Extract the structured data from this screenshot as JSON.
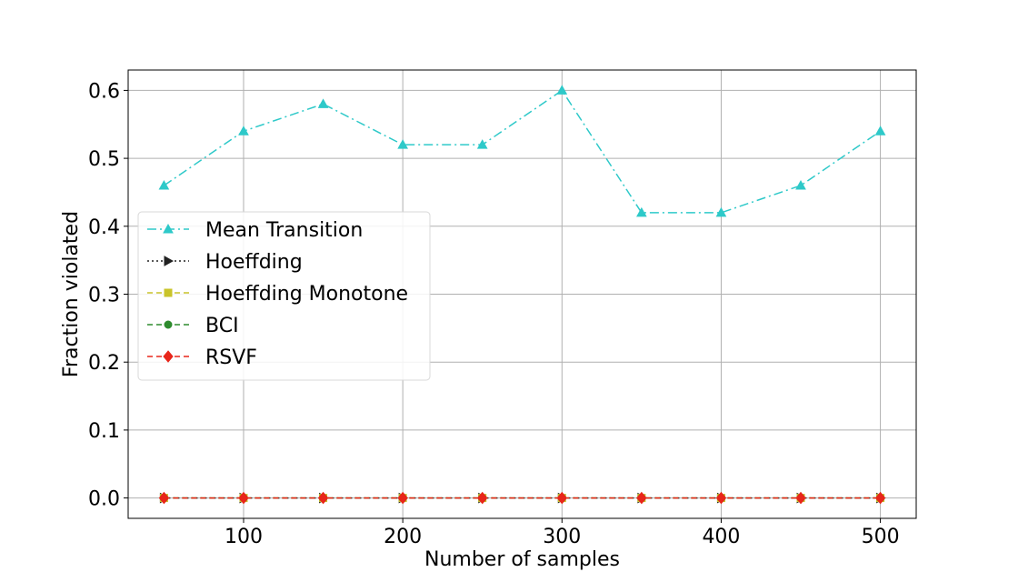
{
  "chart_data": {
    "type": "line",
    "title": "",
    "xlabel": "Number of samples",
    "ylabel": "Fraction violated",
    "x": [
      50,
      100,
      150,
      200,
      250,
      300,
      350,
      400,
      450,
      500
    ],
    "xlim": [
      27.5,
      522.5
    ],
    "ylim": [
      -0.03,
      0.63
    ],
    "xticks": [
      100,
      200,
      300,
      400,
      500
    ],
    "yticks": [
      0.0,
      0.1,
      0.2,
      0.3,
      0.4,
      0.5,
      0.6
    ],
    "xtick_labels": [
      "100",
      "200",
      "300",
      "400",
      "500"
    ],
    "ytick_labels": [
      "0.0",
      "0.1",
      "0.2",
      "0.3",
      "0.4",
      "0.5",
      "0.6"
    ],
    "grid": true,
    "legend_position": "center-left",
    "series": [
      {
        "name": "Mean Transition",
        "values": [
          0.46,
          0.54,
          0.58,
          0.52,
          0.52,
          0.6,
          0.42,
          0.42,
          0.46,
          0.54
        ],
        "color": "#2ec9c9",
        "marker": "triangle",
        "dash": "dashdot"
      },
      {
        "name": "Hoeffding",
        "values": [
          0,
          0,
          0,
          0,
          0,
          0,
          0,
          0,
          0,
          0
        ],
        "color": "#222222",
        "marker": "triangle-right",
        "dash": "dotted"
      },
      {
        "name": "Hoeffding Monotone",
        "values": [
          0,
          0,
          0,
          0,
          0,
          0,
          0,
          0,
          0,
          0
        ],
        "color": "#c9c42a",
        "marker": "square",
        "dash": "dashed"
      },
      {
        "name": "BCI",
        "values": [
          0,
          0,
          0,
          0,
          0,
          0,
          0,
          0,
          0,
          0
        ],
        "color": "#2e8b2e",
        "marker": "circle",
        "dash": "dashed"
      },
      {
        "name": "RSVF",
        "values": [
          0,
          0,
          0,
          0,
          0,
          0,
          0,
          0,
          0,
          0
        ],
        "color": "#e8261a",
        "marker": "diamond",
        "dash": "dashed"
      }
    ]
  }
}
